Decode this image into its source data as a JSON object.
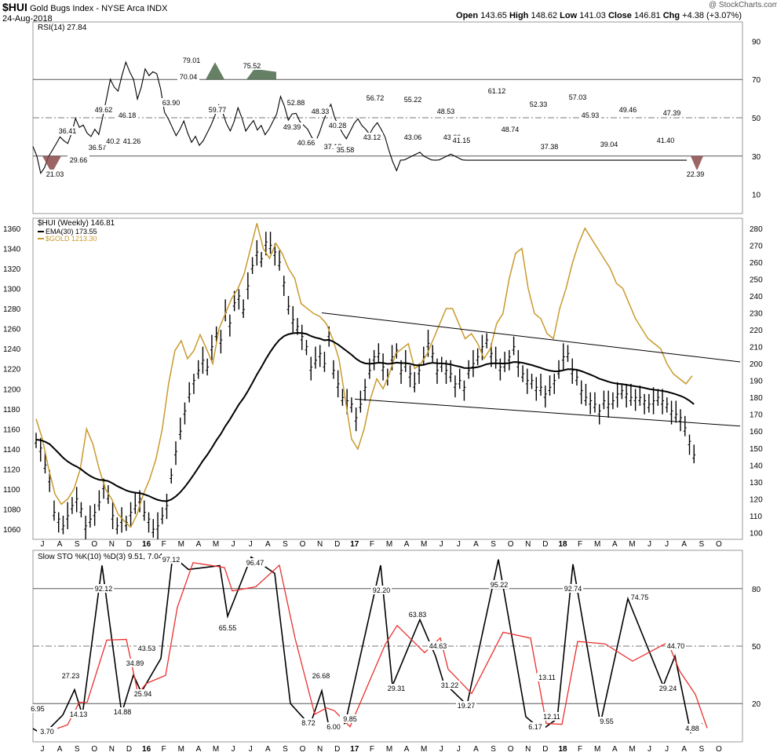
{
  "header": {
    "symbol": "$HUI",
    "name": "Gold Bugs Index - NYSE Arca  INDX",
    "date": "24-Aug-2018",
    "open_label": "Open",
    "open": "143.65",
    "high_label": "High",
    "high": "148.62",
    "low_label": "Low",
    "low": "141.03",
    "close_label": "Close",
    "close": "146.81",
    "chg_label": "Chg",
    "chg": "+4.38 (+3.07%)",
    "watermark": "@ StockCharts.com"
  },
  "chart_data": [
    {
      "type": "line",
      "panel": "rsi",
      "legend": "RSI(14) 27.84",
      "ylim": [
        0,
        100
      ],
      "yticks": [
        10,
        30,
        50,
        70,
        90
      ],
      "reference_lines": [
        30,
        50,
        70
      ],
      "series": [
        {
          "name": "RSI(14)",
          "x_week": [
            0,
            2,
            4,
            6,
            8,
            10,
            12,
            14,
            16,
            18,
            20,
            22,
            24,
            26,
            28,
            30,
            32,
            34,
            36,
            38,
            40,
            42,
            44,
            46,
            48,
            50,
            52,
            54,
            56,
            58,
            60,
            62,
            64,
            66,
            68,
            70,
            72,
            74,
            76,
            78,
            80,
            82,
            84,
            86,
            88,
            90,
            92,
            94,
            96,
            98,
            100,
            102,
            104,
            106,
            108,
            110,
            112,
            114,
            116,
            118,
            120,
            122,
            124,
            126,
            128,
            130,
            132,
            134,
            136,
            138,
            140,
            142,
            144,
            146,
            148,
            150,
            152,
            154,
            156,
            158,
            160,
            162,
            164,
            166,
            168,
            170,
            172,
            174,
            176,
            178,
            180,
            182,
            184,
            186,
            188,
            190,
            192,
            194,
            196,
            198,
            200,
            202,
            204,
            206,
            208,
            210,
            212,
            214,
            216,
            218,
            220,
            222,
            224,
            226,
            228,
            230,
            232,
            234,
            236,
            238,
            240,
            242,
            244,
            246,
            248,
            250,
            252,
            254,
            256,
            258,
            260,
            262,
            264,
            266,
            268,
            270,
            272,
            274,
            276,
            278,
            280,
            282,
            284,
            286,
            288,
            290,
            292,
            294,
            296,
            298,
            300,
            302,
            304,
            306,
            308,
            310,
            312,
            314,
            316,
            318,
            320,
            322,
            324,
            326,
            328,
            330,
            332,
            334,
            336,
            338,
            340,
            342,
            344,
            346,
            348,
            350,
            352,
            354,
            356,
            358
          ],
          "values": [
            35,
            30,
            21.03,
            24,
            29.66,
            33,
            36.41,
            40,
            38,
            36.57,
            42,
            49.62,
            45,
            46.18,
            42,
            40.2,
            44,
            41.26,
            50,
            60,
            70.04,
            66,
            63.9,
            72,
            79.01,
            74,
            70,
            59.77,
            66,
            75.52,
            72,
            74,
            73,
            65,
            52.88,
            49.39,
            45,
            40.66,
            44,
            48.33,
            42,
            37.18,
            40.28,
            35.58,
            38,
            42,
            46,
            51,
            56.72,
            53,
            47,
            43.12,
            48,
            55.22,
            50,
            43.06,
            46,
            48.53,
            43.6,
            46,
            41.15,
            44,
            48,
            52,
            61.12,
            56,
            48.74,
            52,
            52.33,
            48,
            46,
            44,
            40,
            37.38,
            42,
            48,
            53,
            57.03,
            50,
            45.93,
            42,
            39.04,
            43,
            47,
            49.46,
            46,
            44,
            41.4,
            45,
            47.39,
            44,
            40,
            33,
            27,
            22.39,
            27.84,
            28,
            29,
            30,
            31,
            32,
            30,
            29,
            28,
            27.84,
            28,
            29,
            30,
            31,
            30,
            29,
            28,
            27.84,
            27.84,
            27.84,
            27.84,
            27.84,
            27.84,
            27.84,
            27.84,
            27.84,
            27.84,
            27.84,
            27.84,
            27.84,
            27.84,
            27.84,
            27.84,
            27.84,
            27.84,
            27.84,
            27.84,
            27.84,
            27.84,
            27.84,
            27.84,
            27.84,
            27.84,
            27.84,
            27.84,
            27.84,
            27.84,
            27.84,
            27.84,
            27.84,
            27.84,
            27.84,
            27.84,
            27.84,
            27.84,
            27.84,
            27.84,
            27.84,
            27.84,
            27.84,
            27.84,
            27.84,
            27.84,
            27.84,
            27.84,
            27.84,
            27.84,
            27.84,
            27.84,
            27.84,
            27.84,
            27.84,
            27.84,
            27.84,
            27.84,
            27.84,
            27.84,
            27.84,
            27.84,
            27.84,
            27.84,
            27.84,
            27.84,
            27.84,
            27.84
          ]
        }
      ],
      "annotations": [
        "21.03",
        "29.66",
        "36.41",
        "36.57",
        "49.62",
        "46.18",
        "40.2",
        "41.26",
        "70.04",
        "63.90",
        "79.01",
        "59.77",
        "75.52",
        "52.88",
        "49.39",
        "40.66",
        "48.33",
        "37.18",
        "40.28",
        "35.58",
        "56.72",
        "43.12",
        "55.22",
        "43.06",
        "48.53",
        "43.60",
        "41.15",
        "61.12",
        "48.74",
        "52.33",
        "37.38",
        "57.03",
        "45.93",
        "39.04",
        "49.46",
        "41.40",
        "47.39",
        "22.39"
      ]
    },
    {
      "type": "bar",
      "panel": "price",
      "legend": [
        "$HUI (Weekly) 146.81",
        "EMA(30) 173.55",
        "$GOLD 1213.30"
      ],
      "left_axis": {
        "label": "$GOLD",
        "ylim": [
          1050,
          1370
        ],
        "ticks": [
          1060,
          1080,
          1100,
          1120,
          1140,
          1160,
          1180,
          1200,
          1220,
          1240,
          1260,
          1280,
          1300,
          1320,
          1340,
          1360
        ]
      },
      "right_axis": {
        "label": "$HUI",
        "ylim": [
          96,
          286
        ],
        "ticks": [
          100,
          110,
          120,
          130,
          140,
          150,
          160,
          170,
          180,
          190,
          200,
          210,
          220,
          230,
          240,
          250,
          260,
          270,
          280
        ]
      },
      "x_ticks": [
        "J",
        "A",
        "S",
        "O",
        "N",
        "D",
        "16",
        "F",
        "M",
        "A",
        "M",
        "J",
        "J",
        "A",
        "S",
        "O",
        "N",
        "D",
        "17",
        "F",
        "M",
        "A",
        "M",
        "J",
        "J",
        "A",
        "S",
        "O",
        "N",
        "D",
        "18",
        "F",
        "M",
        "A",
        "M",
        "J",
        "J",
        "A",
        "S",
        "O"
      ],
      "series": [
        {
          "name": "$HUI",
          "values": [
            155,
            150,
            140,
            132,
            112,
            108,
            104,
            110,
            116,
            120,
            114,
            104,
            108,
            112,
            118,
            128,
            122,
            110,
            104,
            108,
            106,
            112,
            116,
            120,
            112,
            108,
            102,
            104,
            110,
            116,
            134,
            148,
            160,
            172,
            182,
            190,
            196,
            202,
            198,
            210,
            218,
            214,
            230,
            224,
            236,
            240,
            232,
            246,
            258,
            266,
            262,
            272,
            270,
            266,
            260,
            248,
            234,
            226,
            222,
            216,
            210,
            198,
            202,
            206,
            200,
            218,
            196,
            188,
            180,
            178,
            176,
            168,
            176,
            186,
            196,
            204,
            206,
            198,
            192,
            204,
            208,
            196,
            200,
            194,
            188,
            196,
            204,
            212,
            206,
            196,
            200,
            196,
            194,
            188,
            190,
            186,
            196,
            200,
            204,
            210,
            214,
            206,
            202,
            198,
            200,
            204,
            210,
            200,
            194,
            190,
            190,
            186,
            186,
            182,
            186,
            190,
            196,
            204,
            206,
            196,
            192,
            184,
            180,
            178,
            176,
            172,
            178,
            176,
            178,
            182,
            184,
            182,
            180,
            180,
            180,
            178,
            176,
            178,
            180,
            178,
            176,
            172,
            170,
            168,
            162,
            154,
            146
          ],
          "color": "#000000"
        },
        {
          "name": "$GOLD",
          "values": [
            1170,
            1150,
            1120,
            1095,
            1085,
            1090,
            1100,
            1120,
            1160,
            1145,
            1120,
            1100,
            1090,
            1075,
            1068,
            1062,
            1075,
            1095,
            1110,
            1130,
            1160,
            1205,
            1238,
            1248,
            1230,
            1238,
            1254,
            1240,
            1225,
            1260,
            1275,
            1290,
            1300,
            1315,
            1340,
            1365,
            1340,
            1330,
            1345,
            1335,
            1320,
            1310,
            1285,
            1280,
            1275,
            1272,
            1265,
            1250,
            1230,
            1190,
            1150,
            1140,
            1160,
            1190,
            1210,
            1200,
            1215,
            1235,
            1240,
            1245,
            1220,
            1225,
            1235,
            1250,
            1265,
            1280,
            1280,
            1265,
            1250,
            1255,
            1245,
            1230,
            1240,
            1265,
            1275,
            1310,
            1335,
            1340,
            1300,
            1275,
            1270,
            1255,
            1250,
            1280,
            1300,
            1325,
            1345,
            1360,
            1350,
            1340,
            1330,
            1320,
            1305,
            1300,
            1285,
            1270,
            1260,
            1250,
            1245,
            1240,
            1225,
            1215,
            1210,
            1205,
            1213
          ],
          "color": "#c99a2e"
        },
        {
          "name": "EMA(30)",
          "color": "#000000"
        }
      ],
      "channel": {
        "upper": [
          [
            190,
            230
          ],
          [
            300,
            201
          ]
        ],
        "lower": [
          [
            190,
            179
          ],
          [
            300,
            163
          ]
        ]
      }
    },
    {
      "type": "line",
      "panel": "stochastic",
      "legend": "Slow STO %K(10) %D(3) 9.51, 7.04",
      "ylim": [
        0,
        100
      ],
      "yticks": [
        20,
        50,
        80
      ],
      "reference_lines": [
        20,
        50,
        80
      ],
      "series": [
        {
          "name": "%K",
          "color": "#000000"
        },
        {
          "name": "%D",
          "color": "#e8302e"
        }
      ],
      "annotations": [
        "6.95",
        "3.70",
        "27.23",
        "14.13",
        "92.12",
        "14.88",
        "34.89",
        "25.94",
        "43.53",
        "97.12",
        "65.55",
        "96.47",
        "26.68",
        "8.72",
        "6.00",
        "9.85",
        "92.20",
        "29.31",
        "63.83",
        "44.63",
        "31.22",
        "19.27",
        "95.22",
        "13.11",
        "6.17",
        "12.11",
        "92.74",
        "9.55",
        "74.75",
        "29.24",
        "44.70",
        "4.88"
      ]
    }
  ]
}
